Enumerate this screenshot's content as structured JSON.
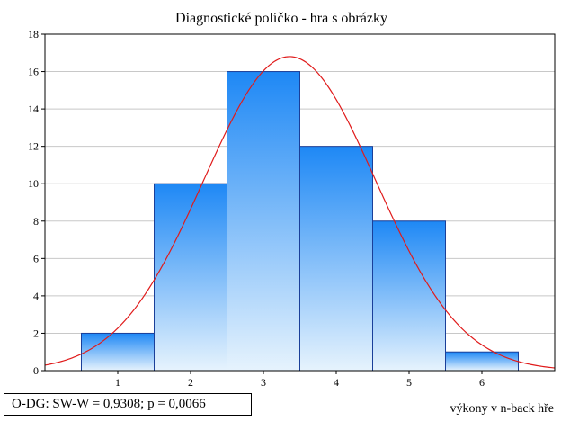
{
  "chart_data": {
    "type": "bar",
    "title": "Diagnostické políčko - hra s obrázky",
    "xlabel": "výkony v n-back hře",
    "ylabel": "",
    "categories": [
      "1",
      "2",
      "3",
      "4",
      "5",
      "6"
    ],
    "values": [
      2,
      10,
      16,
      12,
      8,
      1
    ],
    "xlim": [
      0,
      7
    ],
    "ylim": [
      0,
      18
    ],
    "y_ticks": [
      0,
      2,
      4,
      6,
      8,
      10,
      12,
      14,
      16,
      18
    ],
    "grid": true,
    "bar_color_top": "#1e88f5",
    "bar_color_bottom": "#e6f3fd",
    "bar_edge_color": "#1a3f99",
    "fit_curve": {
      "type": "normal",
      "color": "#e01b1b",
      "mean": 3.36,
      "sd": 1.18,
      "peak": 16.8
    },
    "stats_label": "O-DG:   SW-W = 0,9308; p = 0,0066"
  }
}
